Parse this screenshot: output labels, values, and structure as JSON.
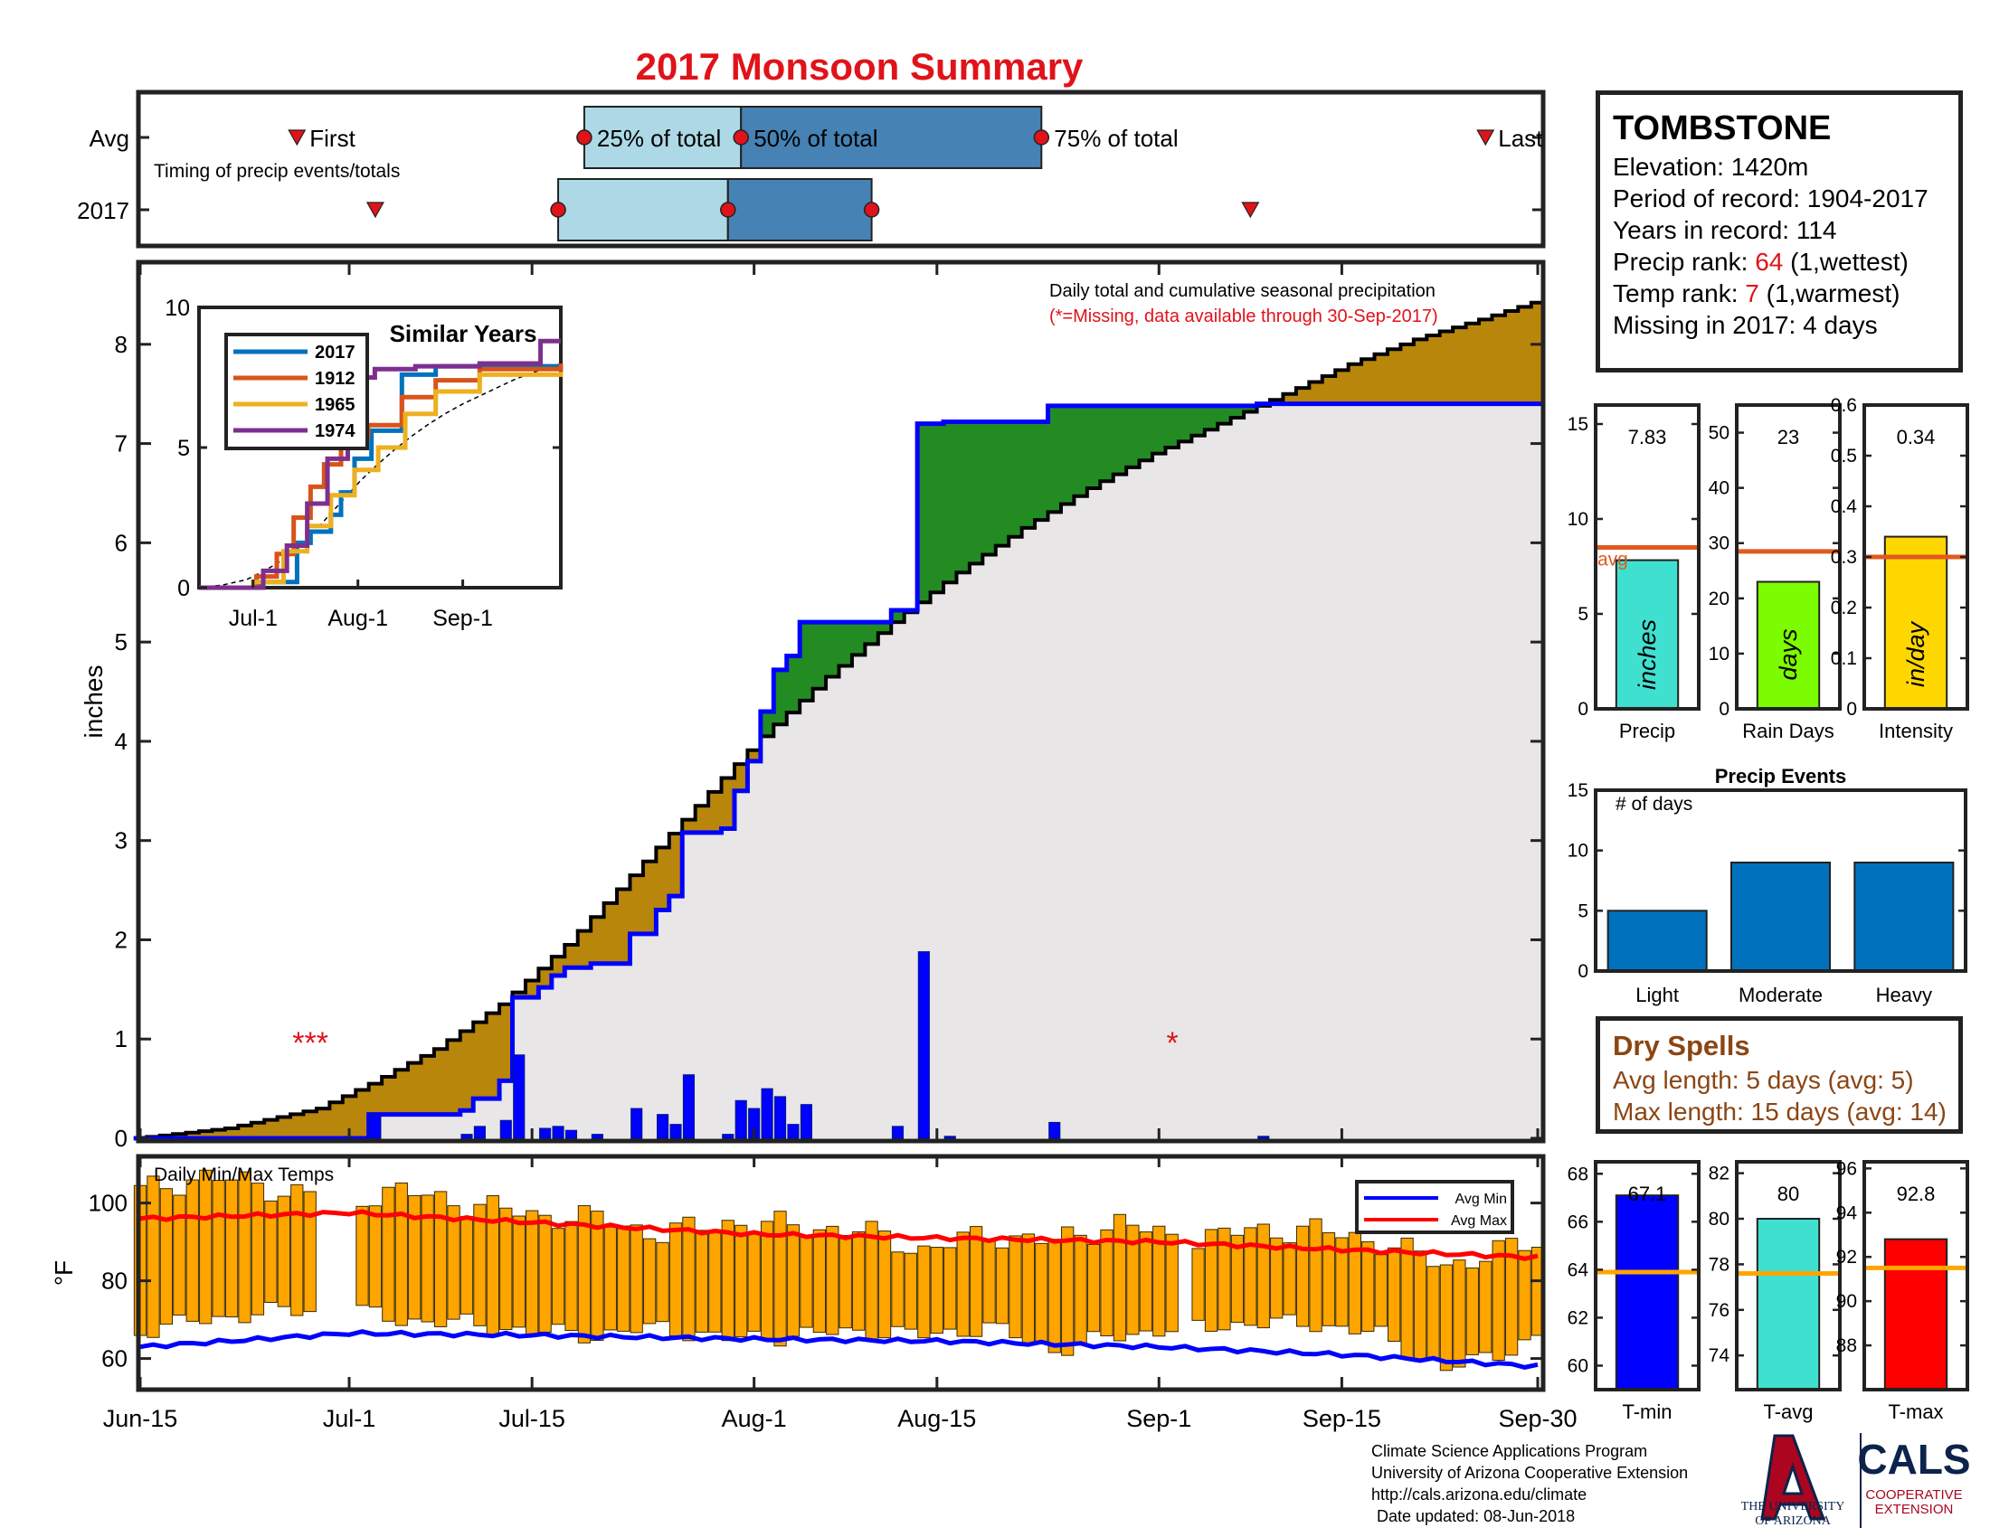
{
  "title": "2017 Monsoon Summary",
  "timing": {
    "row_labels": [
      "Avg",
      "2017"
    ],
    "note": "Timing of precip events/totals",
    "first_label": "First",
    "last_label": "Last",
    "pct25_label": "25% of total",
    "pct50_label": "50% of total",
    "pct75_label": "75% of total",
    "avg": {
      "first": "2017-06-27",
      "p25": "2017-07-19",
      "p50": "2017-07-31",
      "p75": "2017-08-23",
      "last": "2017-09-26"
    },
    "y2017": {
      "first": "2017-07-03",
      "p25": "2017-07-17",
      "p50": "2017-07-30",
      "p75": "2017-08-10",
      "last": "2017-09-08"
    }
  },
  "station": {
    "name": "TOMBSTONE",
    "elevation": "Elevation: 1420m",
    "period": "Period of record: 1904-2017",
    "years": "Years in record: 114",
    "precip_rank_label": "Precip rank:",
    "precip_rank_value": "64",
    "precip_rank_suffix": "(1,wettest)",
    "temp_rank_label": "Temp rank:",
    "temp_rank_value": "7",
    "temp_rank_suffix": "(1,warmest)",
    "missing": "Missing in 2017: 4 days"
  },
  "dry_spells": {
    "title": "Dry Spells",
    "avg_length": "Avg length: 5 days (avg: 5)",
    "max_length": "Max length: 15 days (avg: 14)"
  },
  "footer": {
    "line1": "Climate Science Applications Program",
    "line2": "University of Arizona Cooperative Extension",
    "line3": "http://cals.arizona.edu/climate",
    "line4": "Date updated: 08-Jun-2018"
  },
  "logos": {
    "ua_line1": "THE UNIVERSITY",
    "ua_line2": "OF ARIZONA",
    "cals": "CALS",
    "cals_line1": "COOPERATIVE",
    "cals_line2": "EXTENSION"
  },
  "colors": {
    "title": "#e0131a",
    "observed": "#0000ff",
    "average": "#000000",
    "above_avg_fill": "#228b22",
    "below_avg_fill": "#b8860b",
    "background_fill": "#e8e6e6",
    "temp_bar": "#ffa500",
    "avg_max_line": "#ff0000",
    "avg_min_line": "#0000ff",
    "avg_ref": "#e05a1e",
    "temp_ref": "#ffa500",
    "event_bar": "#0072bd"
  },
  "chart_data": [
    {
      "id": "cumulative_precip",
      "type": "area",
      "title": "Daily total and cumulative seasonal precipitation",
      "subtitle": "(*=Missing, data available through 30-Sep-2017)",
      "ylabel": "inches",
      "ylim": [
        0,
        8.8
      ],
      "yticks": [
        0,
        1,
        2,
        3,
        4,
        5,
        6,
        7,
        8
      ],
      "xlim": [
        "2017-06-15",
        "2017-09-30"
      ],
      "xtick_labels": [
        "Jun-15",
        "Jul-1",
        "Jul-15",
        "Aug-1",
        "Aug-15",
        "Sep-1",
        "Sep-15",
        "Sep-30"
      ],
      "xtick_dates": [
        "2017-06-15",
        "2017-07-01",
        "2017-07-15",
        "2017-08-01",
        "2017-08-15",
        "2017-09-01",
        "2017-09-15",
        "2017-09-30"
      ],
      "missing_marks": [
        {
          "date": "2017-06-29",
          "label": "***",
          "y": 1.0
        },
        {
          "date": "2017-09-03",
          "label": "*",
          "y": 1.0
        }
      ],
      "avg_cumulative_key": {
        "dates": [
          "2017-06-15",
          "2017-06-22",
          "2017-06-29",
          "2017-07-03",
          "2017-07-08",
          "2017-07-13",
          "2017-07-18",
          "2017-07-23",
          "2017-07-28",
          "2017-08-02",
          "2017-08-07",
          "2017-08-12",
          "2017-08-17",
          "2017-08-22",
          "2017-08-27",
          "2017-09-01",
          "2017-09-06",
          "2017-09-11",
          "2017-09-16",
          "2017-09-21",
          "2017-09-26",
          "2017-09-30"
        ],
        "values": [
          0,
          0.1,
          0.3,
          0.55,
          0.9,
          1.35,
          1.95,
          2.65,
          3.35,
          4.05,
          4.65,
          5.2,
          5.7,
          6.15,
          6.55,
          6.9,
          7.2,
          7.5,
          7.8,
          8.05,
          8.25,
          8.42
        ]
      },
      "daily_precip": [
        {
          "date": "2017-07-03",
          "value": 0.24
        },
        {
          "date": "2017-07-10",
          "value": 0.04
        },
        {
          "date": "2017-07-11",
          "value": 0.12
        },
        {
          "date": "2017-07-13",
          "value": 0.18
        },
        {
          "date": "2017-07-14",
          "value": 0.84
        },
        {
          "date": "2017-07-16",
          "value": 0.1
        },
        {
          "date": "2017-07-17",
          "value": 0.12
        },
        {
          "date": "2017-07-18",
          "value": 0.08
        },
        {
          "date": "2017-07-20",
          "value": 0.04
        },
        {
          "date": "2017-07-23",
          "value": 0.3
        },
        {
          "date": "2017-07-25",
          "value": 0.24
        },
        {
          "date": "2017-07-26",
          "value": 0.14
        },
        {
          "date": "2017-07-27",
          "value": 0.64
        },
        {
          "date": "2017-07-30",
          "value": 0.04
        },
        {
          "date": "2017-07-31",
          "value": 0.38
        },
        {
          "date": "2017-08-01",
          "value": 0.3
        },
        {
          "date": "2017-08-02",
          "value": 0.5
        },
        {
          "date": "2017-08-03",
          "value": 0.42
        },
        {
          "date": "2017-08-04",
          "value": 0.14
        },
        {
          "date": "2017-08-05",
          "value": 0.34
        },
        {
          "date": "2017-08-12",
          "value": 0.12
        },
        {
          "date": "2017-08-14",
          "value": 1.88
        },
        {
          "date": "2017-08-16",
          "value": 0.02
        },
        {
          "date": "2017-08-24",
          "value": 0.16
        },
        {
          "date": "2017-09-09",
          "value": 0.02
        }
      ]
    },
    {
      "id": "similar_years",
      "type": "line",
      "title": "Similar Years",
      "ylim": [
        0,
        10
      ],
      "yticks": [
        0,
        5,
        10
      ],
      "xlim": [
        "2017-06-15",
        "2017-09-30"
      ],
      "xtick_labels": [
        "Jul-1",
        "Aug-1",
        "Sep-1"
      ],
      "xtick_dates": [
        "2017-07-01",
        "2017-08-01",
        "2017-09-01"
      ],
      "series": [
        {
          "name": "2017",
          "color": "#0072bd",
          "x": [
            "2017-06-15",
            "2017-07-03",
            "2017-07-14",
            "2017-07-18",
            "2017-07-24",
            "2017-07-27",
            "2017-07-31",
            "2017-08-05",
            "2017-08-14",
            "2017-08-24",
            "2017-09-30"
          ],
          "y": [
            0,
            0.2,
            1.6,
            2.0,
            2.6,
            3.4,
            4.6,
            5.6,
            7.6,
            7.9,
            7.9
          ]
        },
        {
          "name": "1912",
          "color": "#d95319",
          "x": [
            "2017-06-15",
            "2017-07-02",
            "2017-07-08",
            "2017-07-13",
            "2017-07-18",
            "2017-07-22",
            "2017-07-27",
            "2017-08-04",
            "2017-08-14",
            "2017-08-24",
            "2017-09-06",
            "2017-09-30"
          ],
          "y": [
            0,
            0.4,
            1.2,
            2.5,
            3.6,
            4.4,
            5.4,
            5.8,
            6.8,
            7.4,
            7.8,
            8.0
          ]
        },
        {
          "name": "1965",
          "color": "#edb120",
          "x": [
            "2017-06-15",
            "2017-07-01",
            "2017-07-10",
            "2017-07-17",
            "2017-07-24",
            "2017-07-31",
            "2017-08-07",
            "2017-08-15",
            "2017-08-24",
            "2017-09-06",
            "2017-09-30"
          ],
          "y": [
            0,
            0.2,
            1.3,
            2.2,
            3.3,
            4.2,
            5.0,
            6.2,
            7.0,
            7.6,
            7.7
          ]
        },
        {
          "name": "1974",
          "color": "#7e2f8e",
          "x": [
            "2017-06-15",
            "2017-07-04",
            "2017-07-11",
            "2017-07-17",
            "2017-07-23",
            "2017-07-29",
            "2017-08-06",
            "2017-08-18",
            "2017-09-06",
            "2017-09-24",
            "2017-09-30"
          ],
          "y": [
            0,
            0.6,
            1.5,
            3.0,
            4.6,
            7.5,
            7.8,
            7.9,
            8.0,
            8.8,
            8.8
          ]
        }
      ]
    },
    {
      "id": "daily_temps",
      "type": "bar",
      "title": "Daily Min/Max Temps",
      "ylabel": "°F",
      "ylim": [
        52,
        112
      ],
      "yticks": [
        60,
        80,
        100
      ],
      "legend": [
        "Avg Min",
        "Avg Max"
      ],
      "legend_position": "top-right",
      "xlim": [
        "2017-06-15",
        "2017-09-30"
      ],
      "avg_max_key": {
        "dates": [
          "2017-06-15",
          "2017-07-01",
          "2017-07-15",
          "2017-08-01",
          "2017-08-15",
          "2017-09-01",
          "2017-09-15",
          "2017-09-30"
        ],
        "values": [
          96,
          97.5,
          95,
          92,
          91,
          90,
          88,
          86
        ]
      },
      "avg_min_key": {
        "dates": [
          "2017-06-15",
          "2017-07-01",
          "2017-07-15",
          "2017-08-01",
          "2017-08-15",
          "2017-09-01",
          "2017-09-15",
          "2017-09-30"
        ],
        "values": [
          63,
          66.5,
          66,
          65,
          64.5,
          63,
          61,
          58
        ]
      },
      "daily_max_key": {
        "dates": [
          "2017-06-15",
          "2017-06-20",
          "2017-06-25",
          "2017-06-30",
          "2017-07-05",
          "2017-07-10",
          "2017-07-15",
          "2017-07-20",
          "2017-07-25",
          "2017-07-30",
          "2017-08-04",
          "2017-08-09",
          "2017-08-14",
          "2017-08-19",
          "2017-08-24",
          "2017-08-29",
          "2017-09-03",
          "2017-09-08",
          "2017-09-13",
          "2017-09-18",
          "2017-09-23",
          "2017-09-30"
        ],
        "values": [
          103,
          107,
          104,
          101,
          103,
          100,
          97,
          96,
          92,
          95,
          94,
          93,
          88,
          92,
          90,
          95,
          90,
          93,
          93,
          90,
          84,
          90
        ]
      },
      "daily_min_key": {
        "dates": [
          "2017-06-15",
          "2017-06-20",
          "2017-06-25",
          "2017-06-30",
          "2017-07-05",
          "2017-07-10",
          "2017-07-15",
          "2017-07-20",
          "2017-07-25",
          "2017-07-30",
          "2017-08-04",
          "2017-08-09",
          "2017-08-14",
          "2017-08-19",
          "2017-08-24",
          "2017-08-29",
          "2017-09-03",
          "2017-09-08",
          "2017-09-13",
          "2017-09-18",
          "2017-09-23",
          "2017-09-30"
        ],
        "values": [
          67,
          70,
          72,
          73,
          70,
          69,
          67,
          66,
          68,
          65,
          66,
          67,
          66,
          68,
          62,
          66,
          68,
          69,
          69,
          66,
          57,
          65
        ]
      },
      "missing_dates": [
        "2017-06-29",
        "2017-06-30",
        "2017-07-01",
        "2017-09-03"
      ]
    },
    {
      "id": "season_precip",
      "type": "bar",
      "xlabel": "Precip",
      "ylim": [
        0,
        16
      ],
      "yticks": [
        0,
        5,
        10,
        15
      ],
      "value": 7.83,
      "value_label": "7.83",
      "avg": 8.5,
      "avg_label": "avg",
      "bar_label": "inches",
      "color": "#40e0d0"
    },
    {
      "id": "rain_days",
      "type": "bar",
      "xlabel": "Rain Days",
      "ylim": [
        0,
        55
      ],
      "yticks": [
        0,
        10,
        20,
        30,
        40,
        50
      ],
      "value": 23,
      "value_label": "23",
      "avg": 28.5,
      "bar_label": "days",
      "color": "#7cfc00"
    },
    {
      "id": "intensity",
      "type": "bar",
      "xlabel": "Intensity",
      "ylim": [
        0,
        0.6
      ],
      "yticks": [
        0,
        0.1,
        0.2,
        0.3,
        0.4,
        0.5,
        0.6
      ],
      "value": 0.34,
      "value_label": "0.34",
      "avg": 0.3,
      "bar_label": "in/day",
      "color": "#ffd700"
    },
    {
      "id": "precip_events",
      "type": "bar",
      "title": "Precip Events",
      "ylabel": "# of days",
      "ylim": [
        0,
        15
      ],
      "yticks": [
        0,
        5,
        10,
        15
      ],
      "categories": [
        "Light",
        "Moderate",
        "Heavy"
      ],
      "values": [
        5,
        9,
        9
      ]
    },
    {
      "id": "t_min",
      "type": "bar",
      "xlabel": "T-min",
      "ylim": [
        59,
        68.5
      ],
      "yticks": [
        60,
        62,
        64,
        66,
        68
      ],
      "value": 67.1,
      "value_label": "67.1",
      "avg": 63.9,
      "color": "#0000ff"
    },
    {
      "id": "t_avg",
      "type": "bar",
      "xlabel": "T-avg",
      "ylim": [
        72.5,
        82.5
      ],
      "yticks": [
        74,
        76,
        78,
        80,
        82
      ],
      "value": 80,
      "value_label": "80",
      "avg": 77.6,
      "color": "#40e0d0"
    },
    {
      "id": "t_max",
      "type": "bar",
      "xlabel": "T-max",
      "ylim": [
        86,
        96.3
      ],
      "yticks": [
        88,
        90,
        92,
        94,
        96
      ],
      "value": 92.8,
      "value_label": "92.8",
      "avg": 91.5,
      "color": "#ff0000"
    }
  ]
}
